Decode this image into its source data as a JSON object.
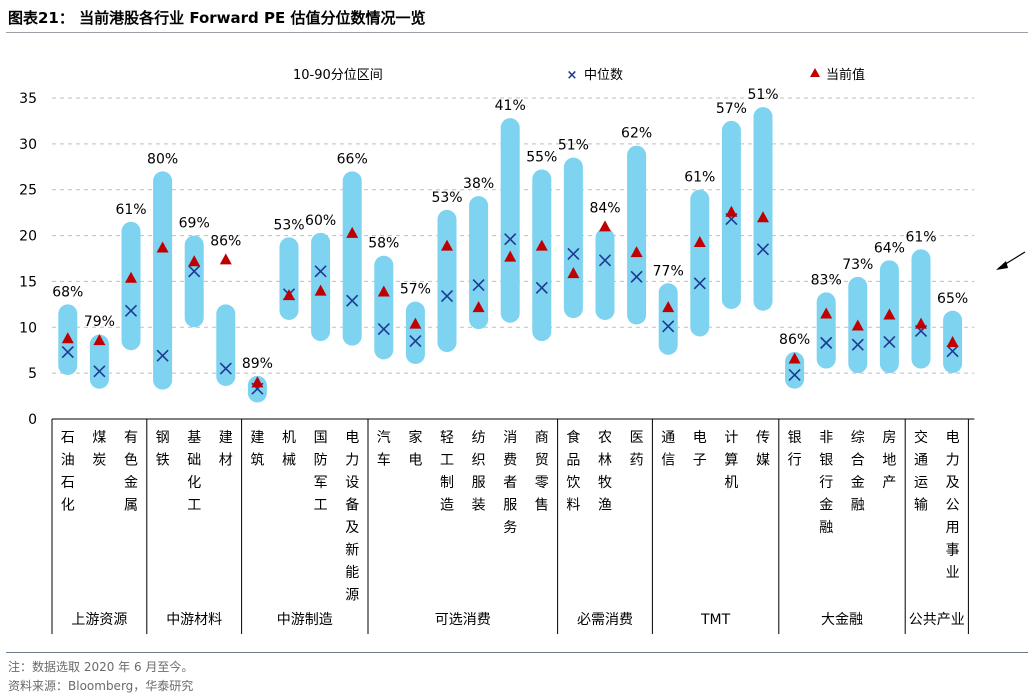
{
  "figure_title": "图表21：  当前港股各行业 Forward PE 估值分位数情况一览",
  "notes": {
    "line1": "注：数据选取 2020 年 6 月至今。",
    "line2": "资料来源：Bloomberg，华泰研究"
  },
  "colors": {
    "range_bar": "#7DD3F0",
    "median_marker": "#1F3A93",
    "current_marker": "#C00000",
    "axis": "#000000",
    "grid": "#BFBFBF",
    "title_rule": "#9AA0A6",
    "note_text": "#6B6B6B"
  },
  "chart_data": {
    "type": "range_bar_with_markers",
    "legend": {
      "placement": "top",
      "items": [
        {
          "key": "range",
          "label": "10-90分位区间"
        },
        {
          "key": "median",
          "label": "中位数",
          "marker": "x"
        },
        {
          "key": "current",
          "label": "当前值",
          "marker": "triangle"
        }
      ]
    },
    "y_axis": {
      "min": 0,
      "max": 35,
      "ticks": [
        0,
        5,
        10,
        15,
        20,
        25,
        30,
        35
      ]
    },
    "grid": true,
    "groups": [
      {
        "name": "上游资源",
        "industries": [
          "石油石化",
          "煤炭",
          "有色金属"
        ]
      },
      {
        "name": "中游材料",
        "industries": [
          "钢铁",
          "基础化工",
          "建材"
        ]
      },
      {
        "name": "中游制造",
        "industries": [
          "建筑",
          "机械",
          "国防军工",
          "电力设备及新能源"
        ]
      },
      {
        "name": "可选消费",
        "industries": [
          "汽车",
          "家电",
          "轻工制造",
          "纺织服装",
          "消费者服务",
          "商贸零售"
        ]
      },
      {
        "name": "必需消费",
        "industries": [
          "食品饮料",
          "农林牧渔",
          "医药"
        ]
      },
      {
        "name": "TMT",
        "industries": [
          "通信",
          "电子",
          "计算机",
          "传媒"
        ]
      },
      {
        "name": "大金融",
        "industries": [
          "银行",
          "非银行金融",
          "综合金融",
          "房地产"
        ]
      },
      {
        "name": "公共产业",
        "industries": [
          "交通运输",
          "电力及公用事业"
        ]
      }
    ],
    "industries": [
      {
        "name": "石油石化",
        "p10": 4.8,
        "p90": 12.5,
        "median": 7.3,
        "current": 8.8,
        "percentile": "68%"
      },
      {
        "name": "煤炭",
        "p10": 3.3,
        "p90": 9.2,
        "median": 5.2,
        "current": 8.6,
        "percentile": "79%"
      },
      {
        "name": "有色金属",
        "p10": 7.5,
        "p90": 21.5,
        "median": 11.8,
        "current": 15.4,
        "percentile": "61%"
      },
      {
        "name": "钢铁",
        "p10": 3.2,
        "p90": 27.0,
        "median": 6.9,
        "current": 18.7,
        "percentile": "80%"
      },
      {
        "name": "基础化工",
        "p10": 10.0,
        "p90": 20.0,
        "median": 16.1,
        "current": 17.2,
        "percentile": "69%"
      },
      {
        "name": "建材",
        "p10": 3.6,
        "p90": 12.5,
        "median": 5.5,
        "current": 17.4,
        "percentile": "86%"
      },
      {
        "name": "建筑",
        "p10": 1.8,
        "p90": 4.7,
        "median": 3.3,
        "current": 4.0,
        "percentile": "89%"
      },
      {
        "name": "机械",
        "p10": 10.8,
        "p90": 19.8,
        "median": 13.6,
        "current": 13.5,
        "percentile": "53%"
      },
      {
        "name": "国防军工",
        "p10": 8.5,
        "p90": 20.3,
        "median": 16.1,
        "current": 14.0,
        "percentile": "60%"
      },
      {
        "name": "电力设备及新能源",
        "p10": 8.0,
        "p90": 27.0,
        "median": 12.9,
        "current": 20.3,
        "percentile": "66%"
      },
      {
        "name": "汽车",
        "p10": 6.5,
        "p90": 17.8,
        "median": 9.8,
        "current": 13.9,
        "percentile": "58%"
      },
      {
        "name": "家电",
        "p10": 6.0,
        "p90": 12.8,
        "median": 8.5,
        "current": 10.4,
        "percentile": "57%"
      },
      {
        "name": "轻工制造",
        "p10": 7.3,
        "p90": 22.8,
        "median": 13.4,
        "current": 18.9,
        "percentile": "53%"
      },
      {
        "name": "纺织服装",
        "p10": 9.8,
        "p90": 24.3,
        "median": 14.6,
        "current": 12.2,
        "percentile": "38%"
      },
      {
        "name": "消费者服务",
        "p10": 10.5,
        "p90": 32.8,
        "median": 19.6,
        "current": 17.7,
        "percentile": "41%"
      },
      {
        "name": "商贸零售",
        "p10": 8.5,
        "p90": 27.2,
        "median": 14.3,
        "current": 18.9,
        "percentile": "55%"
      },
      {
        "name": "食品饮料",
        "p10": 11.0,
        "p90": 28.5,
        "median": 18.0,
        "current": 15.9,
        "percentile": "51%"
      },
      {
        "name": "农林牧渔",
        "p10": 10.8,
        "p90": 20.8,
        "median": 17.3,
        "current": 21.0,
        "percentile": "84%"
      },
      {
        "name": "医药",
        "p10": 10.3,
        "p90": 29.8,
        "median": 15.5,
        "current": 18.2,
        "percentile": "62%"
      },
      {
        "name": "通信",
        "p10": 7.0,
        "p90": 14.8,
        "median": 10.1,
        "current": 12.2,
        "percentile": "77%"
      },
      {
        "name": "电子",
        "p10": 9.0,
        "p90": 25.0,
        "median": 14.8,
        "current": 19.3,
        "percentile": "61%"
      },
      {
        "name": "计算机",
        "p10": 12.0,
        "p90": 32.5,
        "median": 21.8,
        "current": 22.6,
        "percentile": "57%"
      },
      {
        "name": "传媒",
        "p10": 11.8,
        "p90": 34.0,
        "median": 18.5,
        "current": 22.0,
        "percentile": "51%"
      },
      {
        "name": "银行",
        "p10": 3.3,
        "p90": 7.3,
        "median": 4.8,
        "current": 6.6,
        "percentile": "86%"
      },
      {
        "name": "非银行金融",
        "p10": 5.5,
        "p90": 13.8,
        "median": 8.3,
        "current": 11.5,
        "percentile": "83%"
      },
      {
        "name": "综合金融",
        "p10": 5.0,
        "p90": 15.5,
        "median": 8.1,
        "current": 10.2,
        "percentile": "73%"
      },
      {
        "name": "房地产",
        "p10": 5.0,
        "p90": 17.3,
        "median": 8.4,
        "current": 11.4,
        "percentile": "64%"
      },
      {
        "name": "交通运输",
        "p10": 5.5,
        "p90": 18.5,
        "median": 9.6,
        "current": 10.4,
        "percentile": "61%"
      },
      {
        "name": "电力及公用事业",
        "p10": 5.0,
        "p90": 11.8,
        "median": 7.4,
        "current": 8.4,
        "percentile": "65%"
      }
    ]
  }
}
